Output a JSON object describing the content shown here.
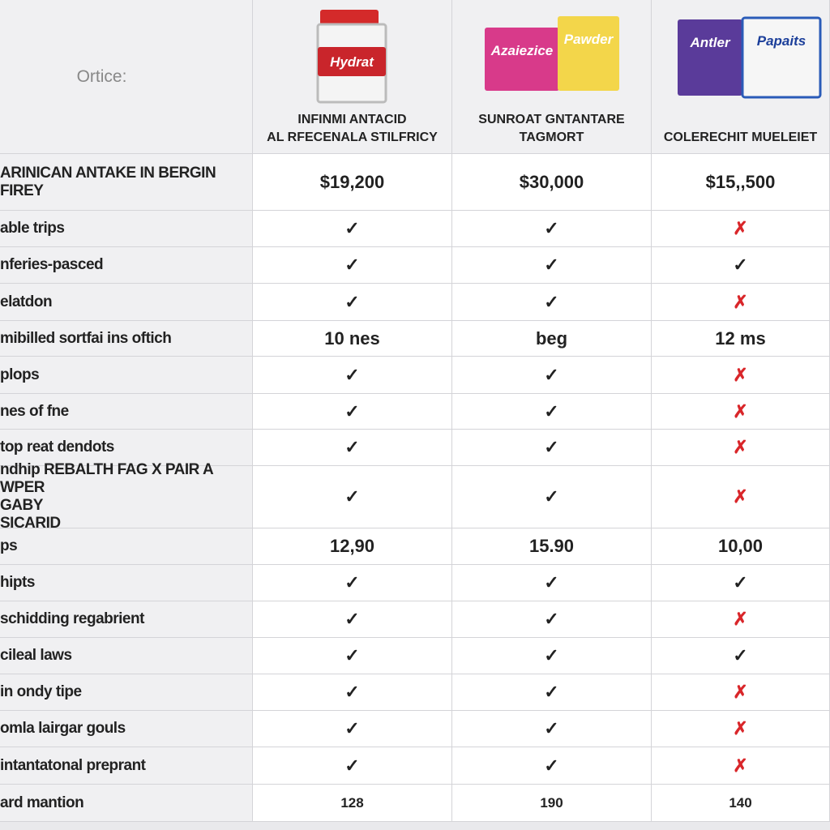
{
  "header": {
    "corner": "Ortice:",
    "products": [
      {
        "name": [
          "INFINMI ANTACID",
          "AL RFECENALA STILFRICY"
        ],
        "package_text": [
          "Hydrat"
        ]
      },
      {
        "name": [
          "SUNROAT GNTANTARE",
          "TAGMORT"
        ],
        "package_text": [
          "Azaiezice",
          "Pawder"
        ]
      },
      {
        "name": [
          "COLERECHIT MUELEIET"
        ],
        "package_text": [
          "Antler",
          "Papaits"
        ]
      }
    ]
  },
  "table": {
    "rows": [
      {
        "label": [
          "ARINICAN ANTAKE IN BERGIN",
          "FIREY"
        ],
        "cells": [
          "$19,200",
          "$30,000",
          "$15,,500"
        ]
      },
      {
        "label": [
          "able trips"
        ],
        "cells": [
          "✓",
          "✓",
          "✗"
        ]
      },
      {
        "label": [
          "nferies-pasced"
        ],
        "cells": [
          "✓",
          "✓",
          "✓"
        ]
      },
      {
        "label": [
          "elatdon"
        ],
        "cells": [
          "✓",
          "✓",
          "✗"
        ]
      },
      {
        "label": [
          "mibilled sortfai ins oftich"
        ],
        "cells": [
          "10 nes",
          "beg",
          "12 ms"
        ]
      },
      {
        "label": [
          "plops"
        ],
        "cells": [
          "✓",
          "✓",
          "✗"
        ]
      },
      {
        "label": [
          "nes of fne"
        ],
        "cells": [
          "✓",
          "✓",
          "✗"
        ]
      },
      {
        "label": [
          "top reat dendots"
        ],
        "cells": [
          "✓",
          "✓",
          "✗"
        ]
      },
      {
        "label": [
          "ndhip REBALTH FAG X PAIR A WPER",
          "GABY",
          "SICARID"
        ],
        "cells": [
          "✓",
          "✓",
          "✗"
        ]
      },
      {
        "label": [
          "ps"
        ],
        "cells": [
          "12,90",
          "15.90",
          "10,00"
        ]
      },
      {
        "label": [
          "hipts"
        ],
        "cells": [
          "✓",
          "✓",
          "✓"
        ]
      },
      {
        "label": [
          "schidding regabrient"
        ],
        "cells": [
          "✓",
          "✓",
          "✗"
        ]
      },
      {
        "label": [
          "cileal laws"
        ],
        "cells": [
          "✓",
          "✓",
          "✓"
        ]
      },
      {
        "label": [
          "in ondy tipe"
        ],
        "cells": [
          "✓",
          "✓",
          "✗"
        ]
      },
      {
        "label": [
          "omla lairgar gouls"
        ],
        "cells": [
          "✓",
          "✓",
          "✗"
        ]
      },
      {
        "label": [
          "intantatonal preprant"
        ],
        "cells": [
          "✓",
          "✓",
          "✗"
        ]
      },
      {
        "label": [
          "ard mantion"
        ],
        "cells": [
          "128",
          "190",
          "140"
        ]
      }
    ]
  }
}
